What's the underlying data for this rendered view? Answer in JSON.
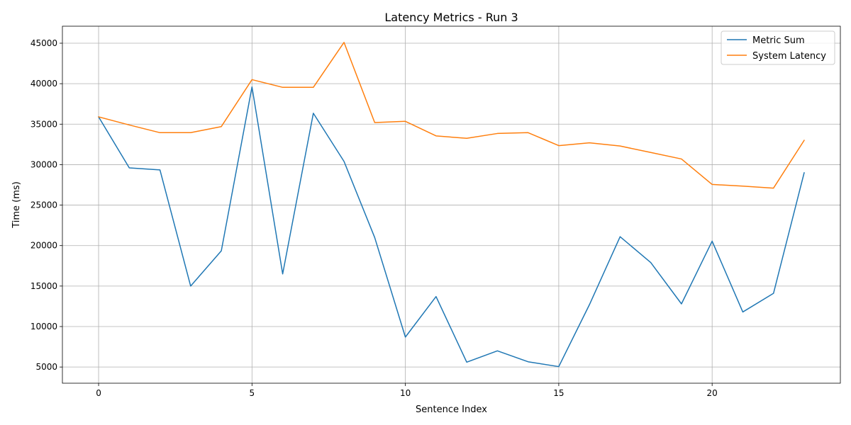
{
  "chart_data": {
    "type": "line",
    "title": "Latency Metrics - Run 3",
    "xlabel": "Sentence Index",
    "ylabel": "Time (ms)",
    "xlim": [
      -1.18,
      24.18
    ],
    "ylim": [
      3000,
      47100
    ],
    "xticks": [
      0,
      5,
      10,
      15,
      20
    ],
    "yticks": [
      5000,
      10000,
      15000,
      20000,
      25000,
      30000,
      35000,
      40000,
      45000
    ],
    "grid": true,
    "legend_position": "top-right",
    "x": [
      0,
      1,
      2,
      3,
      4,
      5,
      6,
      7,
      8,
      9,
      10,
      11,
      12,
      13,
      14,
      15,
      16,
      17,
      18,
      19,
      20,
      21,
      22,
      23
    ],
    "series": [
      {
        "name": "Metric Sum",
        "color": "#1f77b4",
        "values": [
          35900,
          29600,
          29350,
          15000,
          19350,
          39600,
          16500,
          36350,
          30400,
          21000,
          8700,
          13700,
          5600,
          7000,
          5650,
          5050,
          12700,
          21100,
          17900,
          12800,
          20550,
          11800,
          14100,
          29000
        ]
      },
      {
        "name": "System Latency",
        "color": "#ff7f0e",
        "values": [
          35900,
          34900,
          33950,
          33950,
          34700,
          40500,
          39550,
          39550,
          45100,
          35200,
          35350,
          33550,
          33250,
          33850,
          33950,
          32350,
          32700,
          32300,
          31500,
          30700,
          27550,
          27350,
          27100,
          33000
        ]
      }
    ]
  }
}
